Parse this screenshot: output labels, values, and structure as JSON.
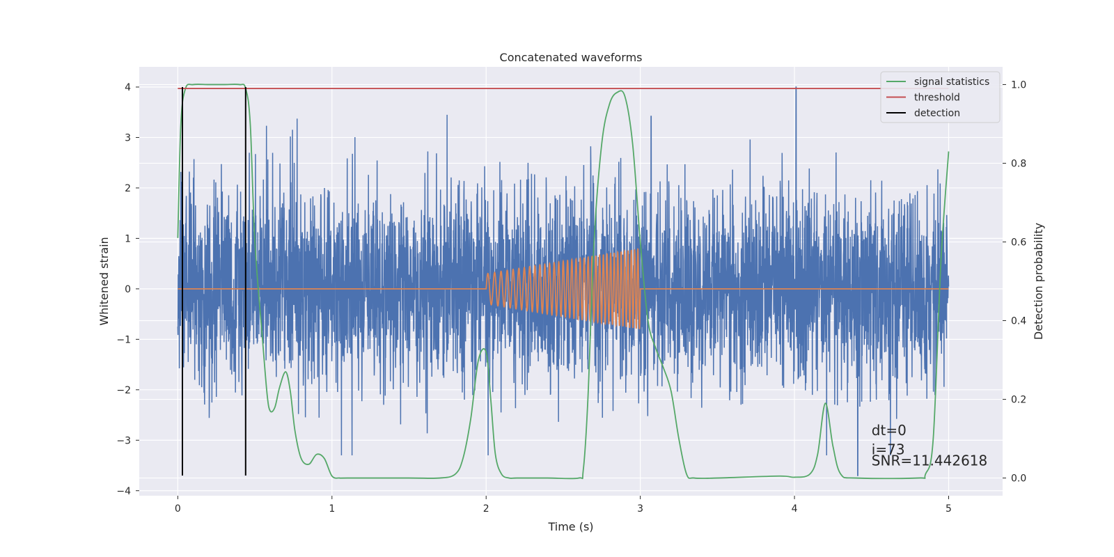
{
  "chart_data": {
    "type": "line",
    "title": "Concatenated waveforms",
    "xlabel": "Time (s)",
    "ylabel": "Whitened strain",
    "y2label": "Detection probability",
    "xlim": [
      -0.25,
      5.35
    ],
    "ylim": [
      -4.1,
      4.4
    ],
    "y2lim": [
      -0.045,
      1.045
    ],
    "xticks": [
      0,
      1,
      2,
      3,
      4,
      5
    ],
    "yticks": [
      -4,
      -3,
      -2,
      -1,
      0,
      1,
      2,
      3,
      4
    ],
    "y2ticks": [
      0.0,
      0.2,
      0.4,
      0.6,
      0.8,
      1.0
    ],
    "y2ticklabels": [
      "0.0",
      "0.2",
      "0.4",
      "0.6",
      "0.8",
      "1.0"
    ],
    "grid": true,
    "legend": {
      "placement": "top-right",
      "entries": [
        {
          "label": "signal statistics",
          "color": "#55a868"
        },
        {
          "label": "threshold",
          "color": "#c44e52"
        },
        {
          "label": "detection",
          "color": "#000000"
        }
      ]
    },
    "series": [
      {
        "role": "whitened-strain-noise",
        "axis": "left",
        "color": "#4c72b0",
        "x_range": [
          0,
          5
        ],
        "typical_amplitude": 2.5,
        "peak_max": 4.0,
        "peak_min": -3.7
      },
      {
        "role": "injected-waveform",
        "axis": "left",
        "color": "#dd8452",
        "x_start": 2.0,
        "x_end": 3.0,
        "amplitude_start": 0.3,
        "amplitude_end": 0.8
      },
      {
        "name": "signal statistics",
        "axis": "right",
        "color": "#55a868",
        "x": [
          0.0,
          0.02,
          0.05,
          0.1,
          0.2,
          0.3,
          0.4,
          0.44,
          0.47,
          0.5,
          0.55,
          0.58,
          0.6,
          0.63,
          0.66,
          0.7,
          0.73,
          0.76,
          0.8,
          0.85,
          0.9,
          0.95,
          1.0,
          1.05,
          1.1,
          1.5,
          1.7,
          1.8,
          1.85,
          1.9,
          1.95,
          2.0,
          2.03,
          2.06,
          2.1,
          2.15,
          2.2,
          2.4,
          2.6,
          2.63,
          2.66,
          2.7,
          2.75,
          2.8,
          2.85,
          2.9,
          2.95,
          3.0,
          3.05,
          3.1,
          3.15,
          3.2,
          3.25,
          3.3,
          3.35,
          3.5,
          3.9,
          4.0,
          4.1,
          4.15,
          4.2,
          4.25,
          4.3,
          4.4,
          4.8,
          4.85,
          4.9,
          4.95,
          5.0
        ],
        "y": [
          0.61,
          0.9,
          0.99,
          1.0,
          1.0,
          1.0,
          1.0,
          0.99,
          0.9,
          0.6,
          0.35,
          0.21,
          0.17,
          0.18,
          0.23,
          0.27,
          0.22,
          0.12,
          0.05,
          0.035,
          0.06,
          0.05,
          0.005,
          0.0,
          0.0,
          0.0,
          0.0,
          0.01,
          0.05,
          0.15,
          0.3,
          0.32,
          0.2,
          0.06,
          0.01,
          0.0,
          0.0,
          0.0,
          0.0,
          0.02,
          0.2,
          0.6,
          0.85,
          0.95,
          0.98,
          0.97,
          0.85,
          0.6,
          0.4,
          0.33,
          0.28,
          0.22,
          0.1,
          0.01,
          0.0,
          0.0,
          0.005,
          0.002,
          0.01,
          0.06,
          0.19,
          0.08,
          0.01,
          0.0,
          0.0,
          0.01,
          0.1,
          0.55,
          0.83
        ]
      },
      {
        "name": "threshold",
        "axis": "right",
        "color": "#c44e52",
        "x": [
          0,
          5
        ],
        "y": [
          0.99,
          0.99
        ]
      },
      {
        "name": "detection",
        "axis": "left",
        "color": "#000000",
        "segments": [
          {
            "x": 0.03,
            "y0": -3.7,
            "y1": 4.0
          },
          {
            "x": 0.44,
            "y0": -3.7,
            "y1": 4.0
          }
        ]
      }
    ],
    "annotations": [
      {
        "text": "dt=0",
        "x": 4.5,
        "y": -2.9
      },
      {
        "text": "i=73",
        "x": 4.5,
        "y": -3.28
      },
      {
        "text": "SNR=11.442618",
        "x": 4.5,
        "y": -3.5
      }
    ]
  }
}
